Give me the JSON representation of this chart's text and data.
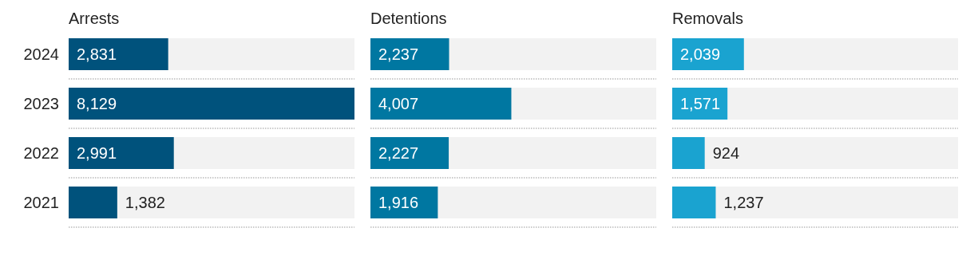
{
  "chart_data": [
    {
      "type": "bar",
      "orientation": "horizontal",
      "title": "Arrests",
      "categories": [
        "2024",
        "2023",
        "2022",
        "2021"
      ],
      "values": [
        2831,
        8129,
        2991,
        1382
      ],
      "value_labels": [
        "2,831",
        "8,129",
        "2,991",
        "1,382"
      ],
      "color": "#00527c",
      "grid": "y",
      "tick_labels": "y"
    },
    {
      "type": "bar",
      "orientation": "horizontal",
      "title": "Detentions",
      "categories": [
        "2024",
        "2023",
        "2022",
        "2021"
      ],
      "values": [
        2237,
        4007,
        2227,
        1916
      ],
      "value_labels": [
        "2,237",
        "4,007",
        "2,227",
        "1,916"
      ],
      "color": "#0077a1",
      "grid": "y",
      "tick_labels": false
    },
    {
      "type": "bar",
      "orientation": "horizontal",
      "title": "Removals",
      "categories": [
        "2024",
        "2023",
        "2022",
        "2021"
      ],
      "values": [
        2039,
        1571,
        924,
        1237
      ],
      "value_labels": [
        "2,039",
        "1,571",
        "924",
        "1,237"
      ],
      "color": "#1aa3d0",
      "grid": "y",
      "tick_labels": false
    }
  ]
}
